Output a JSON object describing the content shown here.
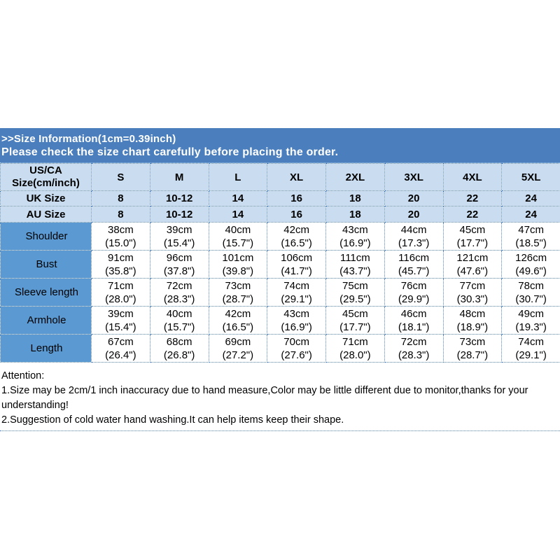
{
  "colors": {
    "banner_bg": "#4a7ebc",
    "header_row_bg": "#c9dcf0",
    "label_column_bg": "#5b99d2",
    "grid_border": "#4f81bd",
    "banner_text": "#ffffff",
    "body_text": "#000000",
    "page_bg": "#ffffff"
  },
  "banner": {
    "line1": ">>Size Information(1cm=0.39inch)",
    "line2": "Please check the size chart carefully before placing the order."
  },
  "size_table": {
    "corner": {
      "line1": "US/CA",
      "line2": "Size(cm/inch)"
    },
    "columns": [
      "S",
      "M",
      "L",
      "XL",
      "2XL",
      "3XL",
      "4XL",
      "5XL"
    ],
    "uk": {
      "label": "UK Size",
      "values": [
        "8",
        "10-12",
        "14",
        "16",
        "18",
        "20",
        "22",
        "24"
      ]
    },
    "au": {
      "label": "AU Size",
      "values": [
        "8",
        "10-12",
        "14",
        "16",
        "18",
        "20",
        "22",
        "24"
      ]
    },
    "rows": [
      {
        "label": "Shoulder",
        "cm": [
          "38cm",
          "39cm",
          "40cm",
          "42cm",
          "43cm",
          "44cm",
          "45cm",
          "47cm"
        ],
        "inch": [
          "(15.0\")",
          "(15.4\")",
          "(15.7\")",
          "(16.5\")",
          "(16.9\")",
          "(17.3\")",
          "(17.7\")",
          "(18.5\")"
        ]
      },
      {
        "label": "Bust",
        "cm": [
          "91cm",
          "96cm",
          "101cm",
          "106cm",
          "111cm",
          "116cm",
          "121cm",
          "126cm"
        ],
        "inch": [
          "(35.8\")",
          "(37.8\")",
          "(39.8\")",
          "(41.7\")",
          "(43.7\")",
          "(45.7\")",
          "(47.6\")",
          "(49.6\")"
        ]
      },
      {
        "label": "Sleeve length",
        "cm": [
          "71cm",
          "72cm",
          "73cm",
          "74cm",
          "75cm",
          "76cm",
          "77cm",
          "78cm"
        ],
        "inch": [
          "(28.0\")",
          "(28.3\")",
          "(28.7\")",
          "(29.1\")",
          "(29.5\")",
          "(29.9\")",
          "(30.3\")",
          "(30.7\")"
        ]
      },
      {
        "label": "Armhole",
        "cm": [
          "39cm",
          "40cm",
          "42cm",
          "43cm",
          "45cm",
          "46cm",
          "48cm",
          "49cm"
        ],
        "inch": [
          "(15.4\")",
          "(15.7\")",
          "(16.5\")",
          "(16.9\")",
          "(17.7\")",
          "(18.1\")",
          "(18.9\")",
          "(19.3\")"
        ]
      },
      {
        "label": "Length",
        "cm": [
          "67cm",
          "68cm",
          "69cm",
          "70cm",
          "71cm",
          "72cm",
          "73cm",
          "74cm"
        ],
        "inch": [
          "(26.4\")",
          "(26.8\")",
          "(27.2\")",
          "(27.6\")",
          "(28.0\")",
          "(28.3\")",
          "(28.7\")",
          "(29.1\")"
        ]
      }
    ]
  },
  "attention": {
    "title": "Attention:",
    "line1": "1.Size may be 2cm/1 inch inaccuracy due to hand measure,Color may be little different due to monitor,thanks for your",
    "line2": "understanding!",
    "line3": "2.Suggestion of cold water hand washing.It can help items keep their shape."
  }
}
